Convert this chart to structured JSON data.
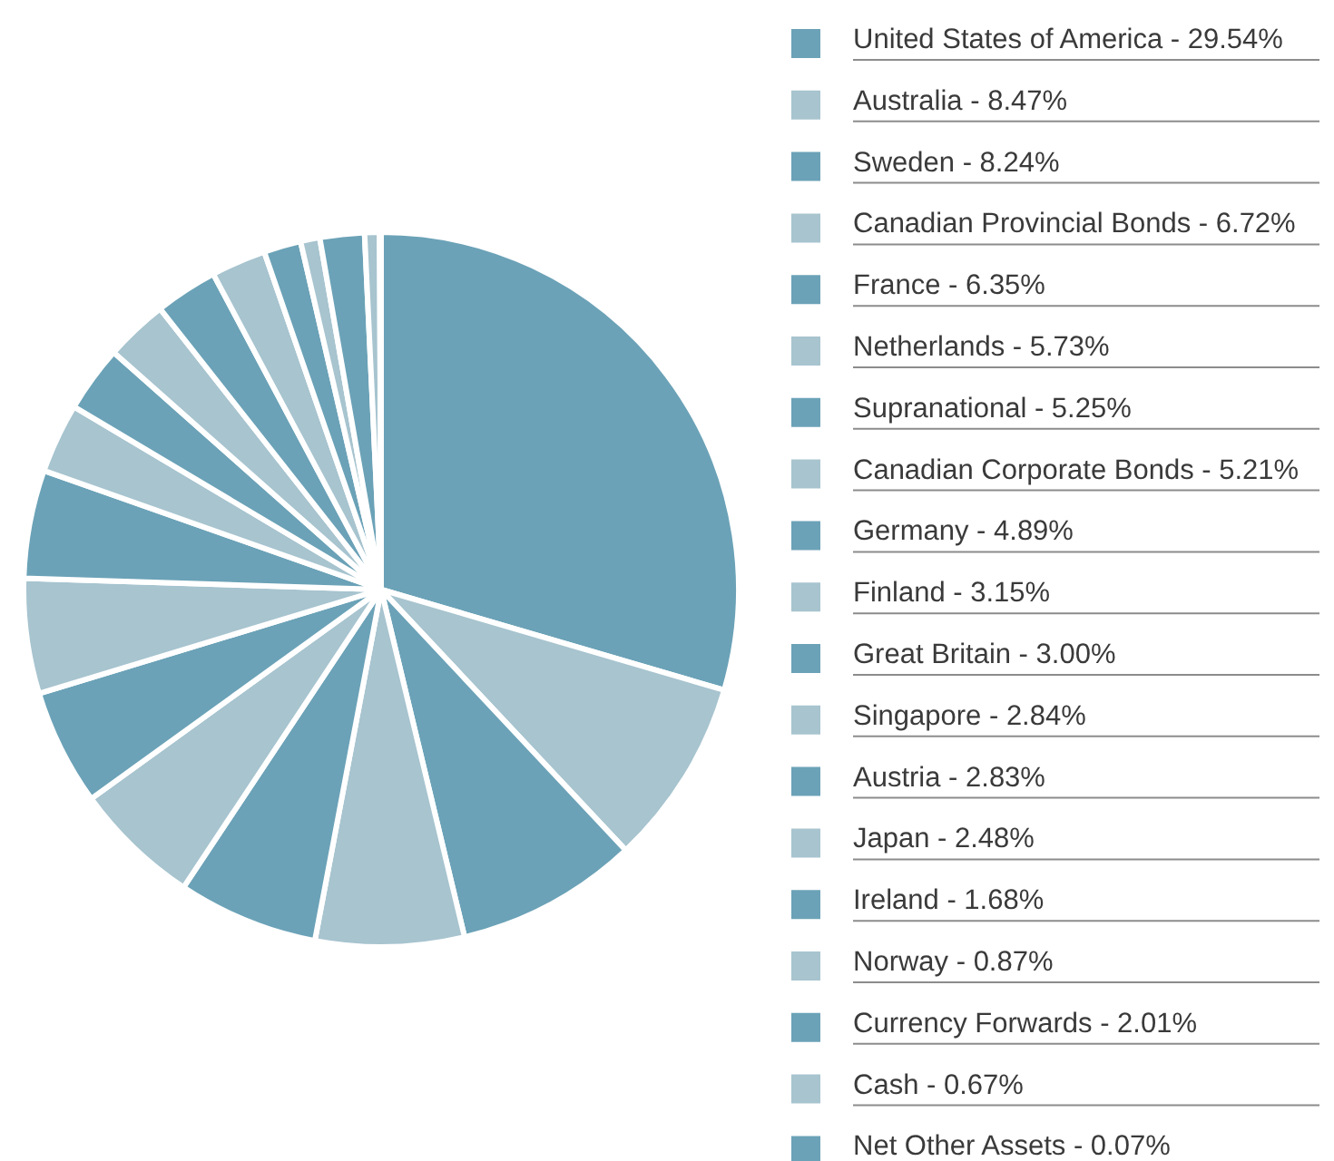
{
  "chart_data": {
    "type": "pie",
    "categories": [
      "United States of America",
      "Australia",
      "Sweden",
      "Canadian Provincial Bonds",
      "France",
      "Netherlands",
      "Supranational",
      "Canadian Corporate Bonds",
      "Germany",
      "Finland",
      "Great Britain",
      "Singapore",
      "Austria",
      "Japan",
      "Ireland",
      "Norway",
      "Currency Forwards",
      "Cash",
      "Net Other Assets"
    ],
    "values": [
      29.54,
      8.47,
      8.24,
      6.72,
      6.35,
      5.73,
      5.25,
      5.21,
      4.89,
      3.15,
      3.0,
      2.84,
      2.83,
      2.48,
      1.68,
      0.87,
      2.01,
      0.67,
      0.07
    ],
    "value_labels": [
      "29.54%",
      "8.47%",
      "8.24%",
      "6.72%",
      "6.35%",
      "5.73%",
      "5.25%",
      "5.21%",
      "4.89%",
      "3.15%",
      "3.00%",
      "2.84%",
      "2.83%",
      "2.48%",
      "1.68%",
      "0.87%",
      "2.01%",
      "0.67%",
      "0.07%"
    ],
    "colors": [
      "#6ba2b7",
      "#a7c4cf",
      "#6ba2b7",
      "#a7c4cf",
      "#6ba2b7",
      "#a7c4cf",
      "#6ba2b7",
      "#a7c4cf",
      "#6ba2b7",
      "#a7c4cf",
      "#6ba2b7",
      "#a7c4cf",
      "#6ba2b7",
      "#a7c4cf",
      "#6ba2b7",
      "#a7c4cf",
      "#6ba2b7",
      "#a7c4cf",
      "#6ba2b7"
    ],
    "legend": "right"
  }
}
